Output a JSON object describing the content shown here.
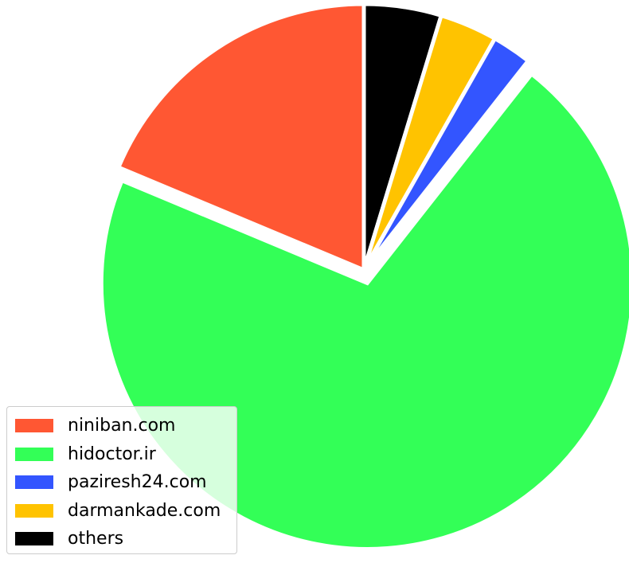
{
  "chart_data": {
    "type": "pie",
    "start_angle_deg": 90,
    "direction": "clockwise",
    "slices": [
      {
        "label": "others",
        "value": 4.7,
        "color": "#000000",
        "explode": false
      },
      {
        "label": "darmankade.com",
        "value": 3.5,
        "color": "#FFC300",
        "explode": false
      },
      {
        "label": "paziresh24.com",
        "value": 2.4,
        "color": "#3355FF",
        "explode": false
      },
      {
        "label": "hidoctor.ir",
        "value": 70.7,
        "color": "#33FF57",
        "explode": true
      },
      {
        "label": "niniban.com",
        "value": 18.7,
        "color": "#FF5733",
        "explode": false
      }
    ],
    "legend": {
      "position": "lower-left",
      "entries": [
        {
          "label": "niniban.com",
          "color": "#FF5733"
        },
        {
          "label": "hidoctor.ir",
          "color": "#33FF57"
        },
        {
          "label": "paziresh24.com",
          "color": "#3355FF"
        },
        {
          "label": "darmankade.com",
          "color": "#FFC300"
        },
        {
          "label": "others",
          "color": "#000000"
        }
      ]
    }
  }
}
